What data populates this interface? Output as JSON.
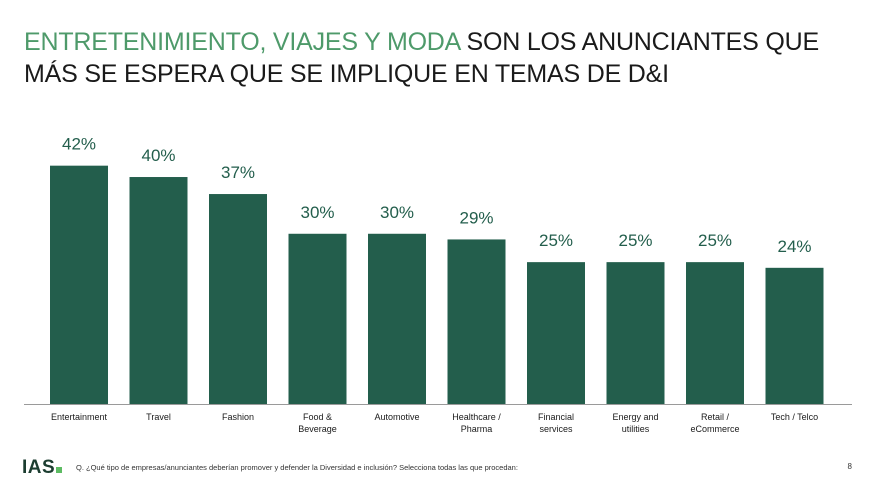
{
  "title": {
    "accent": "ENTRETENIMIENTO, VIAJES Y MODA",
    "rest": " SON LOS ANUNCIANTES QUE MÁS SE ESPERA QUE SE IMPLIQUE EN TEMAS DE D&I"
  },
  "chart_data": {
    "type": "bar",
    "categories": [
      [
        "Entertainment"
      ],
      [
        "Travel"
      ],
      [
        "Fashion"
      ],
      [
        "Food &",
        "Beverage"
      ],
      [
        "Automotive"
      ],
      [
        "Healthcare /",
        "Pharma"
      ],
      [
        "Financial",
        "services"
      ],
      [
        "Energy and",
        "utilities"
      ],
      [
        "Retail /",
        "eCommerce"
      ],
      [
        "Tech / Telco"
      ]
    ],
    "values": [
      42,
      40,
      37,
      30,
      30,
      29,
      25,
      25,
      25,
      24
    ],
    "value_labels": [
      "42%",
      "40%",
      "37%",
      "30%",
      "30%",
      "29%",
      "25%",
      "25%",
      "25%",
      "24%"
    ],
    "ylim": [
      0,
      43
    ],
    "grid": false,
    "bar_color": "#235e4c",
    "label_color": "#235e4c"
  },
  "footer": {
    "logo": "IAS",
    "question": "Q. ¿Qué tipo de empresas/anunciantes deberían promover y defender la Diversidad e inclusión? Selecciona todas las que procedan:",
    "page": "8"
  }
}
